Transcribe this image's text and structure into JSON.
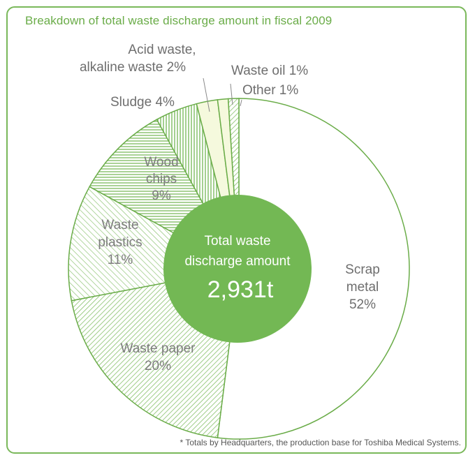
{
  "title": "Breakdown of total waste discharge amount in fiscal 2009",
  "footnote": "* Totals by Headquarters, the production base for Toshiba Medical Systems.",
  "center": {
    "line1": "Total waste",
    "line2": "discharge amount",
    "value": "2,931t"
  },
  "colors": {
    "frame": "#7ab85a",
    "center_fill": "#73b854",
    "hatch": "#86c06a",
    "light_fill": "#f5f9dd"
  },
  "chart_data": {
    "type": "pie",
    "title": "Breakdown of total waste discharge amount in fiscal 2009",
    "total": "2,931t",
    "series": [
      {
        "label": "Scrap metal",
        "value": 52
      },
      {
        "label": "Waste paper",
        "value": 20
      },
      {
        "label": "Waste plastics",
        "value": 11
      },
      {
        "label": "Wood chips",
        "value": 9
      },
      {
        "label": "Sludge",
        "value": 4
      },
      {
        "label": "Acid waste, alkaline waste",
        "value": 2
      },
      {
        "label": "Waste oil",
        "value": 1
      },
      {
        "label": "Other",
        "value": 1
      }
    ]
  },
  "labels": {
    "scrap": [
      "Scrap",
      "metal",
      "52%"
    ],
    "paper": [
      "Waste paper",
      "20%"
    ],
    "plastics": [
      "Waste",
      "plastics",
      "11%"
    ],
    "wood": [
      "Wood",
      "chips",
      "9%"
    ],
    "sludge": "Sludge 4%",
    "acid": [
      "Acid waste,",
      "alkaline waste 2%"
    ],
    "oil": "Waste oil 1%",
    "other": "Other 1%"
  }
}
